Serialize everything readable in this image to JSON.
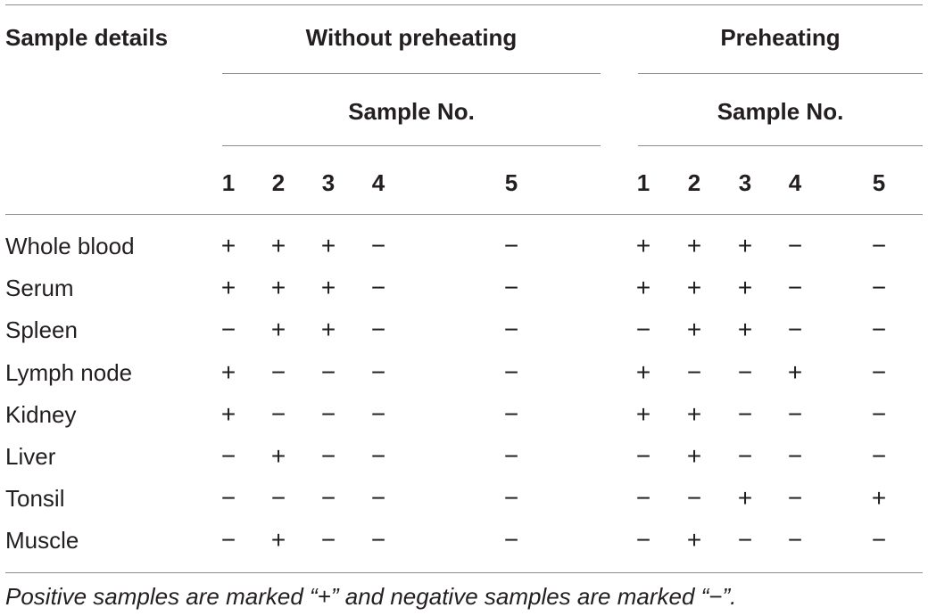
{
  "header": {
    "sample_details": "Sample details",
    "groups": [
      "Without preheating",
      "Preheating"
    ],
    "subheader": "Sample No.",
    "columns": [
      "1",
      "2",
      "3",
      "4",
      "5"
    ]
  },
  "rows": [
    {
      "label": "Whole blood",
      "without": [
        "+",
        "+",
        "+",
        "−",
        "−"
      ],
      "pre": [
        "+",
        "+",
        "+",
        "−",
        "−"
      ]
    },
    {
      "label": "Serum",
      "without": [
        "+",
        "+",
        "+",
        "−",
        "−"
      ],
      "pre": [
        "+",
        "+",
        "+",
        "−",
        "−"
      ]
    },
    {
      "label": "Spleen",
      "without": [
        "−",
        "+",
        "+",
        "−",
        "−"
      ],
      "pre": [
        "−",
        "+",
        "+",
        "−",
        "−"
      ]
    },
    {
      "label": "Lymph node",
      "without": [
        "+",
        "−",
        "−",
        "−",
        "−"
      ],
      "pre": [
        "+",
        "−",
        "−",
        "+",
        "−"
      ]
    },
    {
      "label": "Kidney",
      "without": [
        "+",
        "−",
        "−",
        "−",
        "−"
      ],
      "pre": [
        "+",
        "+",
        "−",
        "−",
        "−"
      ]
    },
    {
      "label": "Liver",
      "without": [
        "−",
        "+",
        "−",
        "−",
        "−"
      ],
      "pre": [
        "−",
        "+",
        "−",
        "−",
        "−"
      ]
    },
    {
      "label": "Tonsil",
      "without": [
        "−",
        "−",
        "−",
        "−",
        "−"
      ],
      "pre": [
        "−",
        "−",
        "+",
        "−",
        "+"
      ]
    },
    {
      "label": "Muscle",
      "without": [
        "−",
        "+",
        "−",
        "−",
        "−"
      ],
      "pre": [
        "−",
        "+",
        "−",
        "−",
        "−"
      ]
    }
  ],
  "footnote": "Positive samples are marked “+” and negative samples are marked “−”."
}
